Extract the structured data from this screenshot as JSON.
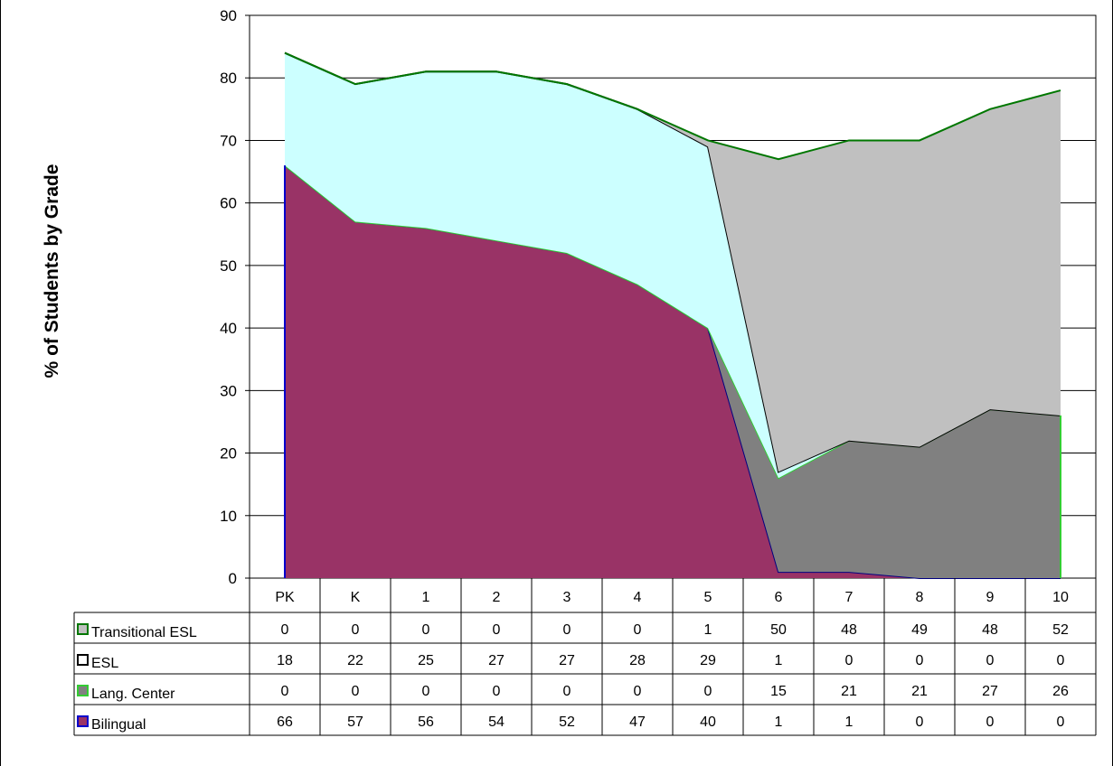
{
  "chart_data": {
    "type": "area",
    "stacked": true,
    "ylabel": "% of Students by Grade",
    "xlabel": "",
    "ylim": [
      0,
      90
    ],
    "yticks": [
      0,
      10,
      20,
      30,
      40,
      50,
      60,
      70,
      80,
      90
    ],
    "grid": true,
    "legend": "data-table-left",
    "categories": [
      "PK",
      "K",
      "1",
      "2",
      "3",
      "4",
      "5",
      "6",
      "7",
      "8",
      "9",
      "10"
    ],
    "series": [
      {
        "name": "Bilingual",
        "values": [
          66,
          57,
          56,
          54,
          52,
          47,
          40,
          1,
          1,
          0,
          0,
          0
        ],
        "fill": "#993366",
        "stroke": "#000080",
        "key": "#993366",
        "keyBorder": "#0000cc"
      },
      {
        "name": "Lang. Center",
        "values": [
          0,
          0,
          0,
          0,
          0,
          0,
          0,
          15,
          21,
          21,
          27,
          26
        ],
        "fill": "#808080",
        "stroke": "#33cc33",
        "key": "#808080",
        "keyBorder": "#33cc33"
      },
      {
        "name": "ESL",
        "values": [
          18,
          22,
          25,
          27,
          27,
          28,
          29,
          1,
          0,
          0,
          0,
          0
        ],
        "fill": "#ccffff",
        "stroke": "#000000",
        "key": "#ffffff",
        "keyBorder": "#000000"
      },
      {
        "name": "Transitional ESL",
        "values": [
          0,
          0,
          0,
          0,
          0,
          0,
          1,
          50,
          48,
          49,
          48,
          52
        ],
        "fill": "#c0c0c0",
        "stroke": "#007700",
        "key": "#c0c0c0",
        "keyBorder": "#007700"
      }
    ],
    "table_row_order": [
      "Transitional ESL",
      "ESL",
      "Lang. Center",
      "Bilingual"
    ]
  }
}
